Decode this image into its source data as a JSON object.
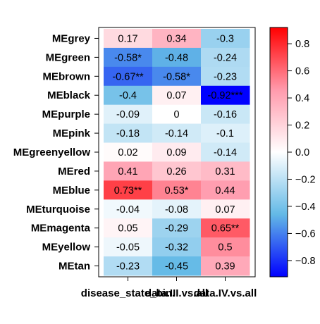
{
  "chart_data": {
    "type": "heatmap",
    "title": "",
    "xlabel": "",
    "ylabel": "",
    "rows": [
      "MEgrey",
      "MEgreen",
      "MEbrown",
      "MEblack",
      "MEpurple",
      "MEpink",
      "MEgreenyellow",
      "MEred",
      "MEblue",
      "MEturquoise",
      "MEmagenta",
      "MEyellow",
      "MEtan"
    ],
    "columns": [
      "disease_state_bin.",
      "data.III.vs.all",
      "data.IV.vs.all"
    ],
    "values": [
      [
        0.17,
        0.34,
        -0.3
      ],
      [
        -0.58,
        -0.48,
        -0.24
      ],
      [
        -0.67,
        -0.58,
        -0.23
      ],
      [
        -0.4,
        0.07,
        -0.92
      ],
      [
        -0.09,
        0,
        -0.16
      ],
      [
        -0.18,
        -0.14,
        -0.1
      ],
      [
        0.02,
        0.09,
        -0.14
      ],
      [
        0.41,
        0.26,
        0.31
      ],
      [
        0.73,
        0.53,
        0.44
      ],
      [
        -0.04,
        -0.08,
        0.07
      ],
      [
        0.05,
        -0.29,
        0.65
      ],
      [
        -0.05,
        -0.32,
        0.5
      ],
      [
        -0.23,
        -0.45,
        0.39
      ]
    ],
    "cell_labels": [
      [
        "0.17",
        "0.34",
        "-0.3"
      ],
      [
        "-0.58*",
        "-0.48",
        "-0.24"
      ],
      [
        "-0.67**",
        "-0.58*",
        "-0.23"
      ],
      [
        "-0.4",
        "0.07",
        "-0.92***"
      ],
      [
        "-0.09",
        "0",
        "-0.16"
      ],
      [
        "-0.18",
        "-0.14",
        "-0.1"
      ],
      [
        "0.02",
        "0.09",
        "-0.14"
      ],
      [
        "0.41",
        "0.26",
        "0.31"
      ],
      [
        "0.73**",
        "0.53*",
        "0.44"
      ],
      [
        "-0.04",
        "-0.08",
        "0.07"
      ],
      [
        "0.05",
        "-0.29",
        "0.65**"
      ],
      [
        "-0.05",
        "-0.32",
        "0.5"
      ],
      [
        "-0.23",
        "-0.45",
        "0.39"
      ]
    ],
    "colorbar": {
      "range": [
        -0.92,
        0.92
      ],
      "ticks": [
        0.8,
        0.6,
        0.4,
        0.2,
        0.0,
        -0.2,
        -0.4,
        -0.6,
        -0.8
      ],
      "tick_labels": [
        "0.8",
        "0.6",
        "0.4",
        "0.2",
        "0.0",
        "−0.2",
        "−0.4",
        "−0.6",
        "−0.8"
      ],
      "colors": {
        "negative": "#0000ff",
        "mid_negative": "#63b9e6",
        "zero": "#ffffff",
        "mid_positive": "#ff9aac",
        "positive": "#ff0000"
      }
    },
    "grid": false,
    "legend": "right"
  }
}
